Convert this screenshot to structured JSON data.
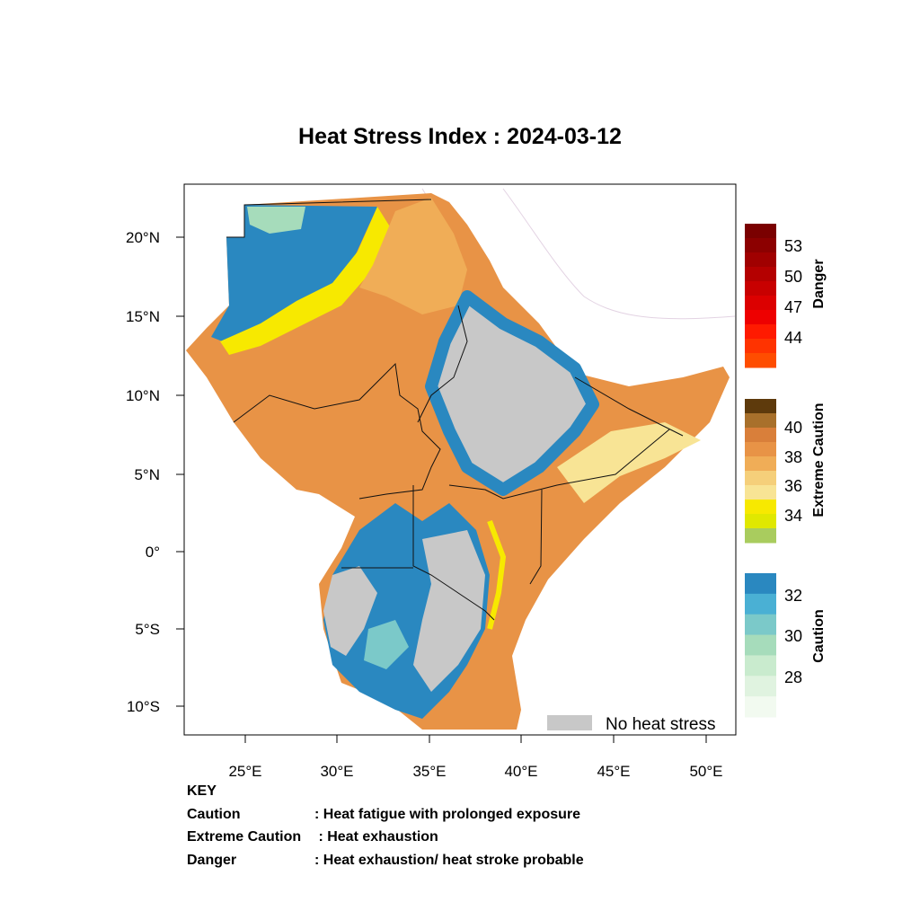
{
  "map": {
    "title": "Heat Stress Index : 2024-03-12",
    "lon_ticks": [
      "25°E",
      "30°E",
      "35°E",
      "40°E",
      "45°E",
      "50°E"
    ],
    "lat_ticks": [
      "20°N",
      "15°N",
      "10°N",
      "5°N",
      "0°",
      "5°S",
      "10°S"
    ],
    "no_heat_stress_label": "No heat stress",
    "no_heat_stress_color": "#c8c8c8"
  },
  "legend": {
    "danger": {
      "label": "Danger",
      "ticks": [
        "53",
        "50",
        "47",
        "44"
      ],
      "colors": [
        "#7a0000",
        "#8c0000",
        "#a00000",
        "#b40000",
        "#c80000",
        "#dc0000",
        "#ee0000",
        "#ff1a00",
        "#ff3300",
        "#ff4d00"
      ]
    },
    "extreme_caution": {
      "label": "Extreme Caution",
      "ticks": [
        "40",
        "38",
        "36",
        "34"
      ],
      "colors": [
        "#5e3a0c",
        "#a8702b",
        "#d97f3a",
        "#e89346",
        "#f0ad57",
        "#f5cf7a",
        "#f8e495",
        "#f7e900",
        "#e0e800",
        "#a9cc5e"
      ]
    },
    "caution": {
      "label": "Caution",
      "ticks": [
        "32",
        "30",
        "28"
      ],
      "colors": [
        "#2a88c0",
        "#4ab0d4",
        "#7bc9c9",
        "#a6dcbb",
        "#c9ebce",
        "#e0f3e0",
        "#f2faf0"
      ]
    }
  },
  "key": {
    "heading": "KEY",
    "rows": [
      {
        "term": "Caution",
        "desc": ": Heat fatigue with prolonged exposure"
      },
      {
        "term": "Extreme Caution",
        "desc": " : Heat exhaustion"
      },
      {
        "term": "Danger",
        "desc": ": Heat exhaustion/ heat stroke probable"
      }
    ]
  }
}
